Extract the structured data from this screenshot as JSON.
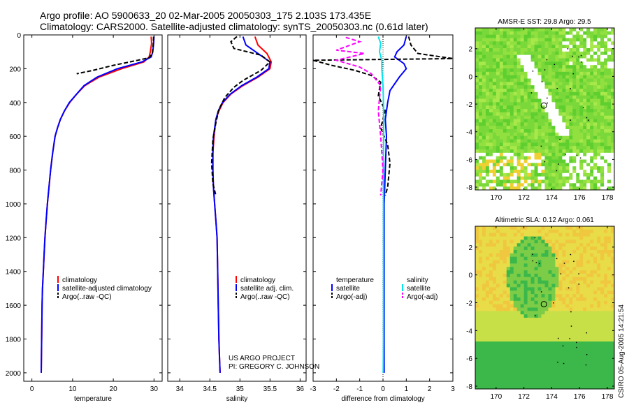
{
  "header": {
    "title_line1": "Argo profile: AO 5900633_20 02-Mar-2005 20050303_175 2.103S 173.435E",
    "title_line2": "Climatology: CARS2000. Satellite-adjusted climatology: synTS_20050303.nc (0.61d later)"
  },
  "credit": {
    "line1": "US ARGO PROJECT",
    "line2": "PI: GREGORY C. JOHNSON"
  },
  "stamp": "CSIRO 05-Aug-2005 14:21:54",
  "colors": {
    "climatology": "#ff0000",
    "satellite": "#0000ff",
    "argo": "#000000",
    "satellite_salinity": "#00e5ee",
    "argo_salinity": "#ff00ff"
  },
  "chart_data": [
    {
      "type": "line",
      "id": "temperature",
      "xlabel": "temperature",
      "ylabel": "",
      "xlim": [
        -2,
        32
      ],
      "ylim": [
        2050,
        0
      ],
      "xticks": [
        0,
        10,
        20,
        30
      ],
      "yticks": [
        0,
        200,
        400,
        600,
        800,
        1000,
        1200,
        1400,
        1600,
        1800,
        2000
      ],
      "legend": [
        "climatology",
        "satellite-adjusted climatology",
        "Argo(..raw -QC)"
      ],
      "series": [
        {
          "name": "climatology",
          "color": "red",
          "style": "solid",
          "x": [
            29.3,
            29.4,
            29.1,
            28.8,
            27.5,
            22.0,
            16.5,
            13.0,
            11.0,
            9.3,
            8.0,
            7.0,
            6.3,
            5.7,
            5.1,
            4.6,
            4.2,
            3.8,
            3.5,
            3.2,
            3.0,
            2.8,
            2.6,
            2.5,
            2.4,
            2.3
          ],
          "y": [
            10,
            50,
            100,
            130,
            160,
            200,
            250,
            300,
            350,
            400,
            450,
            500,
            550,
            600,
            700,
            800,
            900,
            1000,
            1100,
            1200,
            1300,
            1400,
            1500,
            1600,
            1800,
            2000
          ]
        },
        {
          "name": "satellite-adjusted climatology",
          "color": "blue",
          "style": "solid",
          "x": [
            30.0,
            29.9,
            29.7,
            29.3,
            27.0,
            21.0,
            16.0,
            12.8,
            11.0,
            9.2,
            8.0,
            7.0,
            6.3,
            5.7,
            5.1,
            4.6,
            4.2,
            3.8,
            3.5,
            3.2,
            3.0,
            2.8,
            2.6,
            2.5,
            2.4,
            2.3
          ],
          "y": [
            10,
            50,
            100,
            130,
            160,
            200,
            250,
            300,
            350,
            400,
            450,
            500,
            550,
            600,
            700,
            800,
            900,
            1000,
            1100,
            1200,
            1300,
            1400,
            1500,
            1600,
            1800,
            2000
          ]
        },
        {
          "name": "Argo(..raw -QC)",
          "color": "black",
          "style": "dashed",
          "x": [
            29.9,
            29.8,
            29.6,
            28.8,
            26.0,
            20.0,
            15.0,
            11.0
          ],
          "y": [
            10,
            60,
            110,
            135,
            150,
            180,
            210,
            230
          ]
        }
      ]
    },
    {
      "type": "line",
      "id": "salinity",
      "xlabel": "salinity",
      "ylabel": "",
      "xlim": [
        33.8,
        36.1
      ],
      "ylim": [
        2050,
        0
      ],
      "xticks": [
        34,
        34.5,
        35,
        35.5,
        36
      ],
      "yticks": [
        0,
        200,
        400,
        600,
        800,
        1000,
        1200,
        1400,
        1600,
        1800,
        2000
      ],
      "legend": [
        "climatology",
        "satellite adj. clim.",
        "Argo(..raw -QC)"
      ],
      "series": [
        {
          "name": "climatology",
          "color": "red",
          "style": "solid",
          "x": [
            35.25,
            35.3,
            35.45,
            35.52,
            35.5,
            35.3,
            35.05,
            34.85,
            34.72,
            34.65,
            34.6,
            34.57,
            34.55,
            34.55,
            34.56,
            34.58,
            34.6,
            34.62,
            34.63,
            34.64,
            34.65,
            34.66,
            34.67
          ],
          "y": [
            10,
            60,
            110,
            160,
            200,
            250,
            300,
            350,
            400,
            450,
            500,
            600,
            700,
            800,
            900,
            1000,
            1100,
            1200,
            1400,
            1600,
            1800,
            1900,
            2000
          ]
        },
        {
          "name": "satellite adj. clim.",
          "color": "blue",
          "style": "solid",
          "x": [
            35.05,
            35.1,
            35.3,
            35.5,
            35.48,
            35.28,
            35.03,
            34.84,
            34.71,
            34.64,
            34.6,
            34.56,
            34.55,
            34.55,
            34.56,
            34.58,
            34.6,
            34.62,
            34.63,
            34.64,
            34.65,
            34.66,
            34.67
          ],
          "y": [
            10,
            60,
            110,
            160,
            200,
            250,
            300,
            350,
            400,
            450,
            500,
            600,
            700,
            800,
            900,
            1000,
            1100,
            1200,
            1400,
            1600,
            1800,
            1900,
            2000
          ]
        },
        {
          "name": "Argo(..raw -QC)",
          "color": "black",
          "style": "dashed",
          "x": [
            34.95,
            34.85,
            34.9,
            35.35,
            35.5,
            35.35,
            35.05,
            34.9,
            34.75,
            34.65,
            34.6,
            34.55,
            34.53,
            34.55,
            34.6
          ],
          "y": [
            10,
            40,
            80,
            120,
            160,
            210,
            270,
            310,
            370,
            440,
            520,
            620,
            760,
            880,
            950
          ]
        }
      ]
    },
    {
      "type": "line",
      "id": "difference",
      "xlabel": "difference from climatology",
      "ylabel": "",
      "xlim": [
        -3,
        3
      ],
      "ylim": [
        2050,
        0
      ],
      "xticks": [
        -3,
        -2,
        -1,
        0,
        1,
        2,
        3
      ],
      "yticks": [
        0,
        200,
        400,
        600,
        800,
        1000,
        1200,
        1400,
        1600,
        1800,
        2000
      ],
      "legend_temperature": [
        "temperature",
        "satellite",
        "Argo(-adj)"
      ],
      "legend_salinity": [
        "salinity",
        "satellite",
        "Argo(-adj)"
      ],
      "series": [
        {
          "name": "temperature satellite",
          "color": "blue",
          "style": "solid",
          "x": [
            1.0,
            0.9,
            0.6,
            0.5,
            0.9,
            1.0,
            0.7,
            0.3,
            0.2,
            0.1,
            0.15,
            0.1,
            0.05,
            0.05,
            0.05,
            0.05,
            0.05
          ],
          "y": [
            10,
            60,
            100,
            130,
            170,
            200,
            250,
            330,
            400,
            500,
            600,
            800,
            1000,
            1200,
            1400,
            1700,
            2000
          ]
        },
        {
          "name": "temperature Argo(-adj)",
          "color": "black",
          "style": "dashed",
          "x": [
            1.1,
            1.2,
            1.5,
            3.0,
            -3.0,
            -2.2,
            -1.2,
            -0.5,
            -0.1,
            -0.2,
            0.1,
            -0.1,
            0.2,
            0.3,
            0.2,
            0.1
          ],
          "y": [
            10,
            60,
            110,
            140,
            150,
            180,
            210,
            240,
            280,
            360,
            450,
            550,
            650,
            760,
            900,
            950
          ]
        },
        {
          "name": "salinity satellite",
          "color": "cyan",
          "style": "solid",
          "x": [
            -0.2,
            -0.1,
            -0.15,
            -0.05,
            -0.05,
            0.0,
            0.02,
            0.03,
            0.03,
            0.02,
            0.02,
            0.02,
            0.02,
            0.02,
            0.02,
            0.01
          ],
          "y": [
            10,
            50,
            100,
            150,
            200,
            300,
            400,
            500,
            600,
            700,
            800,
            1000,
            1200,
            1500,
            1800,
            2000
          ]
        },
        {
          "name": "salinity Argo(-adj)",
          "color": "magenta",
          "style": "dashed",
          "x": [
            -1.6,
            -1.0,
            -2.0,
            -0.8,
            -2.0,
            -1.0,
            -0.5,
            -0.1,
            -0.2,
            -0.1,
            0.0,
            -0.1
          ],
          "y": [
            15,
            40,
            90,
            110,
            150,
            190,
            230,
            300,
            450,
            600,
            800,
            950
          ]
        }
      ]
    },
    {
      "type": "heatmap",
      "id": "sst-map",
      "title": "AMSR-E SST: 29.8 Argo: 29.5",
      "xlim": [
        168.5,
        178.5
      ],
      "ylim": [
        -8.2,
        3.5
      ],
      "xticks": [
        170,
        172,
        174,
        176,
        178
      ],
      "yticks": [
        -8,
        -6,
        -4,
        -2,
        0,
        2
      ],
      "marker": {
        "lon": 173.435,
        "lat": -2.103
      }
    },
    {
      "type": "heatmap",
      "id": "sla-map",
      "title": "Altimetric SLA: 0.12 Argo: 0.061",
      "xlim": [
        168.5,
        178.5
      ],
      "ylim": [
        -8.2,
        3.5
      ],
      "xticks": [
        170,
        172,
        174,
        176,
        178
      ],
      "yticks": [
        -8,
        -6,
        -4,
        -2,
        0,
        2
      ],
      "marker": {
        "lon": 173.435,
        "lat": -2.103
      }
    }
  ]
}
